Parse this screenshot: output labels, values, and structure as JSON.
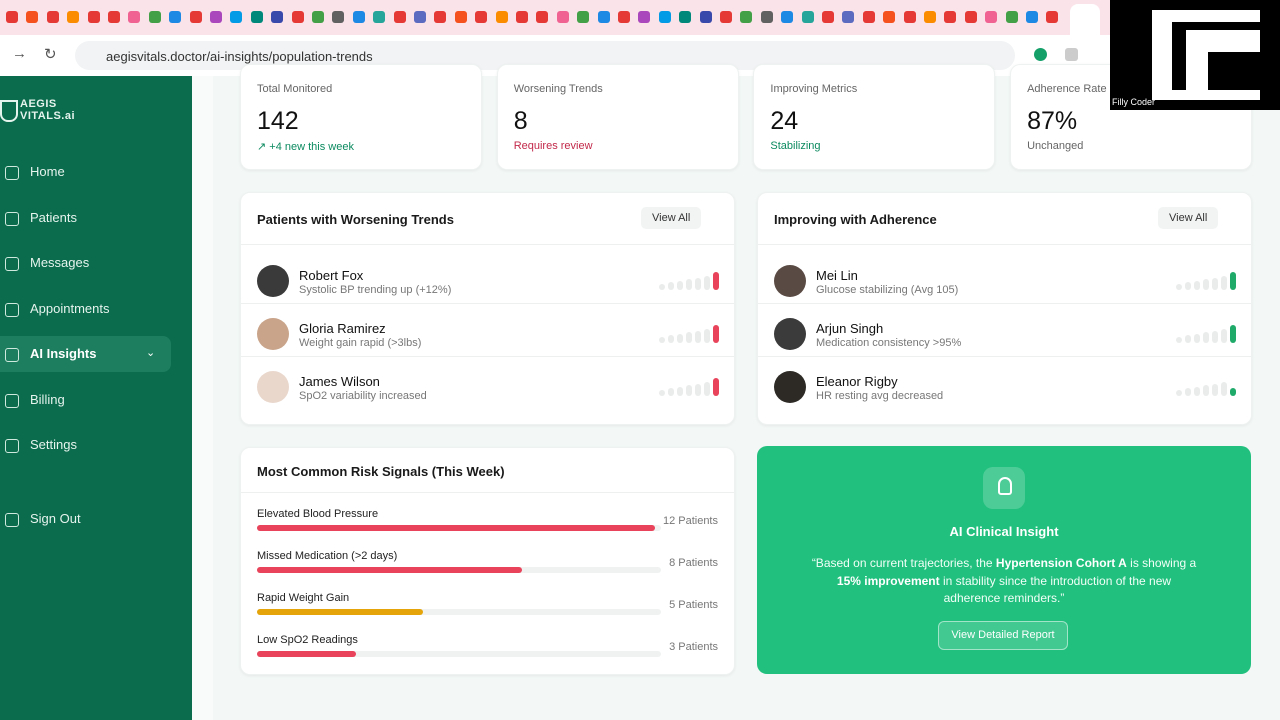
{
  "browser": {
    "url": "aegisvitals.doctor/ai-insights/population-trends"
  },
  "overlay": {
    "name": "Filly Coder"
  },
  "sidebar": {
    "logo": [
      "AEGIS",
      "VITALS.ai"
    ],
    "nav": [
      "Home",
      "Patients",
      "Messages",
      "Appointments",
      "AI Insights",
      "Billing",
      "Settings"
    ],
    "sign_out": "Sign Out"
  },
  "stats": [
    {
      "label": "Total Monitored",
      "value": "142",
      "note": "↗ +4 new this week"
    },
    {
      "label": "Worsening Trends",
      "value": "8",
      "note": "Requires review"
    },
    {
      "label": "Improving Metrics",
      "value": "24",
      "note": "Stabilizing"
    },
    {
      "label": "Adherence Rate",
      "value": "87%",
      "note": "Unchanged"
    }
  ],
  "worsening": {
    "title": "Patients with Worsening Trends",
    "action": "View All",
    "patients": [
      {
        "name": "Robert Fox",
        "detail": "Systolic BP trending up (+12%)"
      },
      {
        "name": "Gloria Ramirez",
        "detail": "Weight gain rapid (>3lbs)"
      },
      {
        "name": "James Wilson",
        "detail": "SpO2 variability increased"
      }
    ]
  },
  "improving": {
    "title": "Improving with Adherence",
    "action": "View All",
    "patients": [
      {
        "name": "Mei Lin",
        "detail": "Glucose stabilizing (Avg 105)"
      },
      {
        "name": "Arjun Singh",
        "detail": "Medication consistency >95%"
      },
      {
        "name": "Eleanor Rigby",
        "detail": "HR resting avg decreased"
      }
    ]
  },
  "risk_signals": {
    "title": "Most Common Risk Signals (This Week)",
    "items": [
      {
        "label": "Elevated Blood Pressure",
        "value": 12,
        "value_label": "12 Patients",
        "color": "#e8435a"
      },
      {
        "label": "Missed Medication (>2 days)",
        "value": 8,
        "value_label": "8 Patients",
        "color": "#e8435a"
      },
      {
        "label": "Rapid Weight Gain",
        "value": 5,
        "value_label": "5 Patients",
        "color": "#e5a50a"
      },
      {
        "label": "Low SpO2 Readings",
        "value": 3,
        "value_label": "3 Patients",
        "color": "#e8435a"
      }
    ]
  },
  "insight": {
    "title": "AI Clinical Insight",
    "quote": [
      {
        "text": "“Based on current trajectories, the "
      },
      {
        "text": "Hypertension Cohort A",
        "bold": true
      },
      {
        "text": " is showing a "
      },
      {
        "text": "15% improvement",
        "bold": true
      },
      {
        "text": " in stability since the introduction of the new adherence reminders.”"
      }
    ],
    "action": "View Detailed Report"
  }
}
